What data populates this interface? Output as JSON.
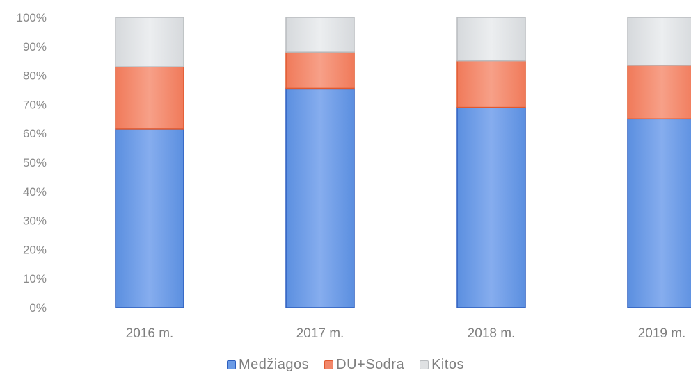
{
  "chart_data": {
    "type": "bar",
    "stacked": true,
    "percent": true,
    "categories": [
      "2016 m.",
      "2017 m.",
      "2018 m.",
      "2019 m."
    ],
    "series": [
      {
        "name": "Medžiagos",
        "values": [
          61.5,
          75.5,
          69,
          65
        ],
        "color": "#6b9be6",
        "stroke": "#2e5fbf"
      },
      {
        "name": "DU+Sodra",
        "values": [
          21.5,
          12.5,
          16,
          18.5
        ],
        "color": "#f2876a",
        "stroke": "#e0592f"
      },
      {
        "name": "Kitos",
        "values": [
          17,
          12,
          15,
          16.5
        ],
        "color": "#dfe1e3",
        "stroke": "#b9bcbf"
      }
    ],
    "y_ticks": [
      "0%",
      "10%",
      "20%",
      "30%",
      "40%",
      "50%",
      "60%",
      "70%",
      "80%",
      "90%",
      "100%"
    ],
    "ylim": [
      0,
      100
    ],
    "grid": false,
    "legend_position": "bottom"
  }
}
